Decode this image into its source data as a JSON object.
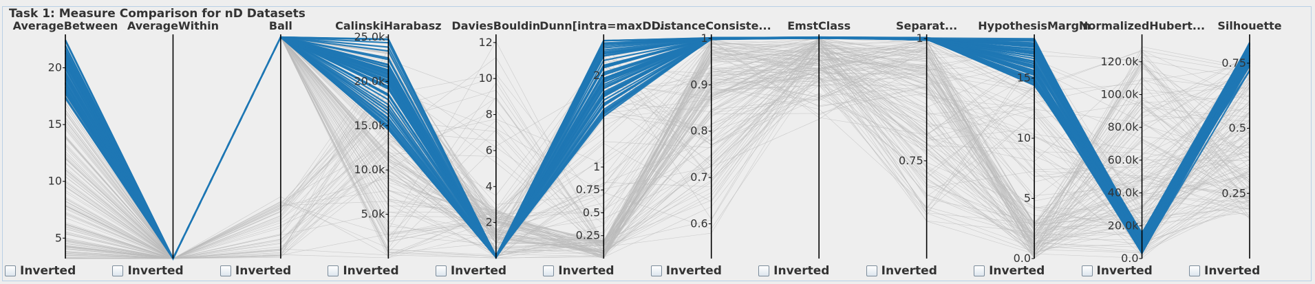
{
  "panel": {
    "title": "Task 1: Measure Comparison for nD Datasets"
  },
  "checkbox_label": "Inverted",
  "colors": {
    "highlight": "#1f77b4",
    "background_line": "#bbbbbb",
    "axis": "#000000"
  },
  "chart_data": {
    "type": "parallel-coordinates",
    "axes": [
      {
        "name": "AverageBetween",
        "min": 3.2,
        "max": 22.7,
        "ticks": [
          {
            "v": 5,
            "t": "5"
          },
          {
            "v": 10,
            "t": "10"
          },
          {
            "v": 15,
            "t": "15"
          },
          {
            "v": 20,
            "t": "20"
          }
        ]
      },
      {
        "name": "AverageWithin",
        "min": 0,
        "max": 1,
        "ticks": []
      },
      {
        "name": "Ball",
        "min": 0,
        "max": 1,
        "ticks": []
      },
      {
        "name": "CalinskiHarabasz",
        "min": 0,
        "max": 25000,
        "ticks": [
          {
            "v": 5000,
            "t": "5.0k"
          },
          {
            "v": 10000,
            "t": "10.0k"
          },
          {
            "v": 15000,
            "t": "15.0k"
          },
          {
            "v": 20000,
            "t": "20.0k"
          },
          {
            "v": 25000,
            "t": "25.0k"
          }
        ]
      },
      {
        "name": "DaviesBouldin",
        "min": 0,
        "max": 12.3,
        "ticks": [
          {
            "v": 2,
            "t": "2"
          },
          {
            "v": 4,
            "t": "4"
          },
          {
            "v": 6,
            "t": "6"
          },
          {
            "v": 8,
            "t": "8"
          },
          {
            "v": 10,
            "t": "10"
          },
          {
            "v": 12,
            "t": "12"
          }
        ]
      },
      {
        "name": "Dunn[intra=maxDi...",
        "min": 0,
        "max": 2.42,
        "ticks": [
          {
            "v": 0.25,
            "t": "0.25"
          },
          {
            "v": 0.5,
            "t": "0.5"
          },
          {
            "v": 0.75,
            "t": "0.75"
          },
          {
            "v": 1,
            "t": "1"
          },
          {
            "v": 2,
            "t": "2"
          }
        ]
      },
      {
        "name": "DistanceConsiste...",
        "min": 0.525,
        "max": 1.003,
        "ticks": [
          {
            "v": 0.6,
            "t": "0.6"
          },
          {
            "v": 0.7,
            "t": "0.7"
          },
          {
            "v": 0.8,
            "t": "0.8"
          },
          {
            "v": 0.9,
            "t": "0.9"
          },
          {
            "v": 1,
            "t": "1"
          }
        ]
      },
      {
        "name": "EmstClass",
        "min": 0,
        "max": 1,
        "ticks": []
      },
      {
        "name": "Separat...",
        "min": 0.55,
        "max": 1.003,
        "ticks": [
          {
            "v": 0.75,
            "t": "0.75"
          },
          {
            "v": 1,
            "t": "1"
          }
        ]
      },
      {
        "name": "HypothesisMargin",
        "min": 0,
        "max": 18.4,
        "ticks": [
          {
            "v": 0,
            "t": "0.0"
          },
          {
            "v": 5,
            "t": "5"
          },
          {
            "v": 10,
            "t": "10"
          },
          {
            "v": 15,
            "t": "15"
          }
        ]
      },
      {
        "name": "NormalizedHubert...",
        "min": 0,
        "max": 135000,
        "ticks": [
          {
            "v": 0,
            "t": "0.0"
          },
          {
            "v": 20000,
            "t": "20.0k"
          },
          {
            "v": 40000,
            "t": "40.0k"
          },
          {
            "v": 60000,
            "t": "60.0k"
          },
          {
            "v": 80000,
            "t": "80.0k"
          },
          {
            "v": 100000,
            "t": "100.0k"
          },
          {
            "v": 120000,
            "t": "120.0k"
          }
        ]
      },
      {
        "name": "Silhouette",
        "min": 0,
        "max": 0.85,
        "ticks": [
          {
            "v": 0.25,
            "t": "0.25"
          },
          {
            "v": 0.5,
            "t": "0.5"
          },
          {
            "v": 0.75,
            "t": "0.75"
          }
        ]
      }
    ]
  }
}
